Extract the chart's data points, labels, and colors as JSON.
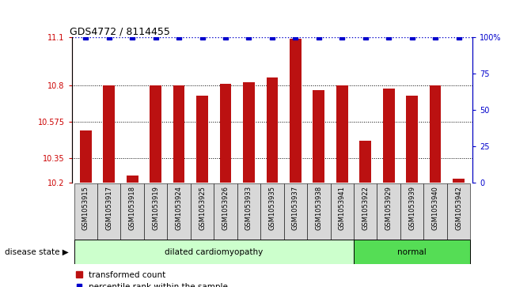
{
  "title": "GDS4772 / 8114455",
  "samples": [
    "GSM1053915",
    "GSM1053917",
    "GSM1053918",
    "GSM1053919",
    "GSM1053924",
    "GSM1053925",
    "GSM1053926",
    "GSM1053933",
    "GSM1053935",
    "GSM1053937",
    "GSM1053938",
    "GSM1053941",
    "GSM1053922",
    "GSM1053929",
    "GSM1053939",
    "GSM1053940",
    "GSM1053942"
  ],
  "bar_values": [
    10.52,
    10.8,
    10.24,
    10.8,
    10.8,
    10.74,
    10.81,
    10.82,
    10.85,
    11.09,
    10.77,
    10.8,
    10.46,
    10.78,
    10.74,
    10.8,
    10.22
  ],
  "percentile_values": [
    100,
    100,
    100,
    100,
    100,
    100,
    100,
    100,
    100,
    100,
    100,
    100,
    100,
    100,
    100,
    100,
    100
  ],
  "ylim_left": [
    10.2,
    11.1
  ],
  "yticks_left": [
    10.2,
    10.35,
    10.575,
    10.8,
    11.1
  ],
  "ytick_labels_left": [
    "10.2",
    "10.35",
    "10.575",
    "10.8",
    "11.1"
  ],
  "ylim_right": [
    0,
    100
  ],
  "yticks_right": [
    0,
    25,
    50,
    75,
    100
  ],
  "ytick_labels_right": [
    "0",
    "25",
    "50",
    "75",
    "100%"
  ],
  "bar_color": "#bb1111",
  "dot_color": "#0000cc",
  "groups": [
    {
      "label": "dilated cardiomyopathy",
      "start": 0,
      "end": 12,
      "color": "#ccffcc"
    },
    {
      "label": "normal",
      "start": 12,
      "end": 17,
      "color": "#55dd55"
    }
  ],
  "disease_state_label": "disease state",
  "legend_bar_label": "transformed count",
  "legend_dot_label": "percentile rank within the sample",
  "tick_label_color_left": "#cc0000",
  "tick_label_color_right": "#0000cc",
  "grid_color": "#000000",
  "sample_bg_color": "#d8d8d8"
}
